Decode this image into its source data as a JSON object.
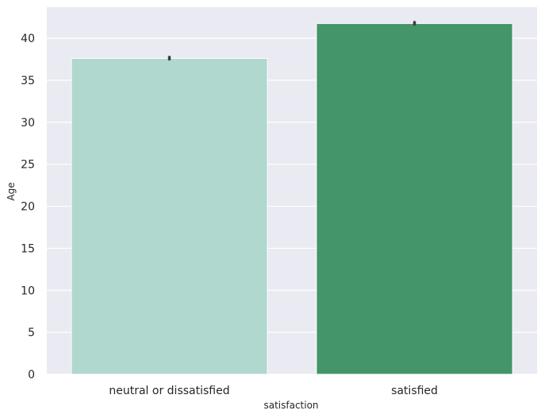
{
  "chart_data": {
    "type": "bar",
    "categories": [
      "neutral or dissatisfied",
      "satisfied"
    ],
    "values": [
      37.6,
      41.75
    ],
    "error_bars": [
      [
        37.5,
        37.75
      ],
      [
        41.65,
        41.9
      ]
    ],
    "xlabel": "satisfaction",
    "ylabel": "Age",
    "ylim": [
      0,
      43.7
    ],
    "yticks": [
      0,
      5,
      10,
      15,
      20,
      25,
      30,
      35,
      40
    ],
    "grid": true,
    "legend": "none",
    "colors": {
      "background": "#eaeaf2",
      "grid": "#ffffff",
      "bars": [
        "#b0d8cf",
        "#449569"
      ],
      "error_bar": "#3d3d3d"
    }
  }
}
